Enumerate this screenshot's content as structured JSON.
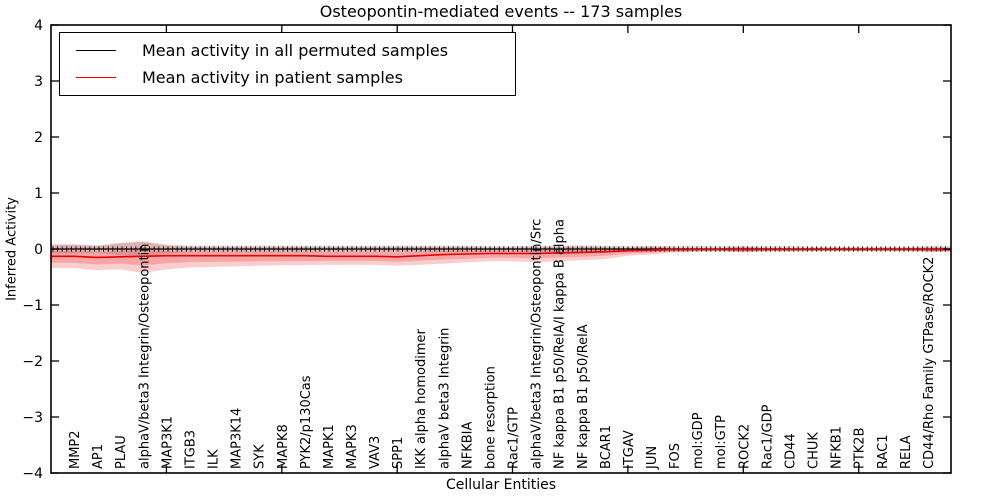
{
  "title": "Osteopontin-mediated events -- 173 samples",
  "axes": {
    "xlabel": "Cellular Entities",
    "ylabel": "Inferred Activity"
  },
  "legend": {
    "items": [
      {
        "label": "Mean activity in all permuted samples",
        "color": "#000000"
      },
      {
        "label": "Mean activity in patient samples",
        "color": "#e60000"
      }
    ]
  },
  "colors": {
    "background": "#ffffff",
    "spine": "#000000",
    "permuted_line": "#000000",
    "patient_line": "#e60000",
    "permuted_band": "rgba(60,60,60,0.18)",
    "patient_band": "rgba(230,10,10,0.20)"
  },
  "chart_data": {
    "type": "line",
    "title": "Osteopontin-mediated events -- 173 samples",
    "xlabel": "Cellular Entities",
    "ylabel": "Inferred Activity",
    "ylim": [
      -4,
      4
    ],
    "ytick_values": [
      4,
      3,
      2,
      1,
      0,
      -1,
      -2,
      -3,
      -4
    ],
    "ytick_labels": [
      "4",
      "3",
      "2",
      "1",
      "0",
      "−1",
      "−2",
      "−3",
      "−4"
    ],
    "xtick_major_positions": [
      5,
      10,
      15,
      20,
      25,
      30,
      35
    ],
    "grid": false,
    "legend_position": "upper left",
    "categories": [
      "MMP2",
      "AP1",
      "PLAU",
      "alphaV/beta3 Integrin/Osteopontin",
      "MAP3K1",
      "ITGB3",
      "ILK",
      "MAP3K14",
      "SYK",
      "MAPK8",
      "PYK2/p130Cas",
      "MAPK1",
      "MAPK3",
      "VAV3",
      "SPP1",
      "IKK alpha homodimer",
      "alphaV beta3 Integrin",
      "NFKBIA",
      "bone resorption",
      "Rac1/GTP",
      "alphaV/beta3 Integrin/Osteopontin/Src",
      "NF kappa B1 p50/RelA/I kappa B alpha",
      "NF kappa B1 p50/RelA",
      "BCAR1",
      "ITGAV",
      "JUN",
      "FOS",
      "mol:GDP",
      "mol:GTP",
      "ROCK2",
      "Rac1/GDP",
      "CD44",
      "CHUK",
      "NFKB1",
      "PTK2B",
      "RAC1",
      "RELA",
      "CD44/Rho Family GTPase/ROCK2"
    ],
    "series": [
      {
        "name": "Mean activity in all permuted samples",
        "color": "#000000",
        "values": [
          0,
          0,
          0,
          0,
          0,
          0,
          0,
          0,
          0,
          0,
          0,
          0,
          0,
          0,
          0,
          0,
          0,
          0,
          0,
          0,
          0,
          0,
          0,
          0,
          0,
          0,
          0,
          0,
          0,
          0,
          0,
          0,
          0,
          0,
          0,
          0,
          0,
          0
        ],
        "band_upper": [
          0.08,
          0.07,
          0.11,
          0.14,
          0.08,
          0.06,
          0.06,
          0.06,
          0.06,
          0.06,
          0.06,
          0.06,
          0.06,
          0.06,
          0.06,
          0.06,
          0.06,
          0.06,
          0.05,
          0.05,
          0.06,
          0.06,
          0.07,
          0.06,
          0.05,
          0.05,
          0.05,
          0.05,
          0.05,
          0.05,
          0.05,
          0.05,
          0.04,
          0.04,
          0.04,
          0.04,
          0.04,
          0.05
        ],
        "band_lower": [
          -0.08,
          -0.07,
          -0.11,
          -0.14,
          -0.08,
          -0.06,
          -0.06,
          -0.06,
          -0.06,
          -0.06,
          -0.06,
          -0.06,
          -0.06,
          -0.06,
          -0.06,
          -0.06,
          -0.06,
          -0.06,
          -0.05,
          -0.05,
          -0.06,
          -0.06,
          -0.07,
          -0.06,
          -0.05,
          -0.05,
          -0.05,
          -0.05,
          -0.05,
          -0.05,
          -0.05,
          -0.05,
          -0.04,
          -0.04,
          -0.04,
          -0.04,
          -0.04,
          -0.05
        ]
      },
      {
        "name": "Mean activity in patient samples",
        "color": "#e60000",
        "values": [
          -0.13,
          -0.15,
          -0.14,
          -0.13,
          -0.12,
          -0.12,
          -0.12,
          -0.12,
          -0.12,
          -0.12,
          -0.12,
          -0.13,
          -0.13,
          -0.13,
          -0.14,
          -0.12,
          -0.1,
          -0.09,
          -0.08,
          -0.08,
          -0.08,
          -0.07,
          -0.06,
          -0.05,
          -0.03,
          -0.02,
          -0.01,
          -0.01,
          -0.01,
          -0.01,
          -0.01,
          -0.01,
          -0.01,
          -0.01,
          -0.01,
          -0.01,
          -0.01,
          -0.01
        ],
        "band_upper": [
          0.08,
          0.05,
          0.1,
          0.13,
          0.06,
          0.04,
          0.03,
          0.03,
          0.03,
          0.03,
          0.03,
          0.03,
          0.03,
          0.03,
          0.03,
          0.03,
          0.03,
          0.03,
          0.02,
          0.02,
          0.03,
          0.04,
          0.04,
          0.03,
          0.02,
          0.05,
          0.02,
          0.01,
          0.01,
          0.05,
          0.01,
          0.01,
          0.01,
          0.01,
          0.01,
          0.01,
          0.01,
          0.03
        ],
        "band_lower": [
          -0.34,
          -0.38,
          -0.36,
          -0.43,
          -0.36,
          -0.33,
          -0.32,
          -0.31,
          -0.3,
          -0.29,
          -0.29,
          -0.28,
          -0.28,
          -0.28,
          -0.3,
          -0.28,
          -0.26,
          -0.24,
          -0.22,
          -0.22,
          -0.24,
          -0.22,
          -0.2,
          -0.18,
          -0.12,
          -0.1,
          -0.06,
          -0.04,
          -0.03,
          -0.06,
          -0.03,
          -0.03,
          -0.02,
          -0.02,
          -0.02,
          -0.02,
          -0.02,
          -0.05
        ]
      }
    ]
  }
}
